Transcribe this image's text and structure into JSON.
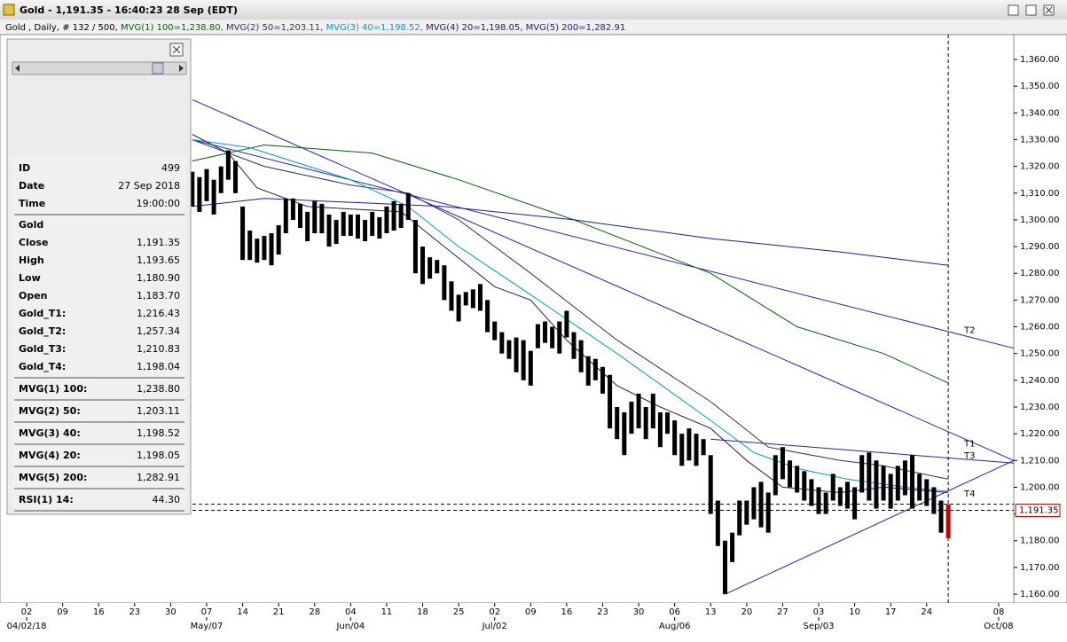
{
  "window": {
    "title": "Gold - 1,191.35 - 16:40:23  28 Sep (EDT)"
  },
  "info_panel": {
    "rows": [
      [
        "ID",
        "499"
      ],
      [
        "Date",
        "27 Sep 2018"
      ],
      [
        "Time",
        "19:00:00"
      ],
      [
        "Gold"
      ],
      [
        "Close",
        "1,191.35"
      ],
      [
        "High",
        "1,193.65"
      ],
      [
        "Low",
        "1,180.90"
      ],
      [
        "Open",
        "1,183.70"
      ],
      [
        "Gold_T1:",
        "1,216.43"
      ],
      [
        "Gold_T2:",
        "1,257.34"
      ],
      [
        "Gold_T3:",
        "1,210.83"
      ],
      [
        "Gold_T4:",
        "1,198.04"
      ],
      [
        "MVG(1) 100:",
        "1,238.80"
      ],
      [
        "MVG(2) 50:",
        "1,203.11"
      ],
      [
        "MVG(3) 40:",
        "1,198.52"
      ],
      [
        "MVG(4) 20:",
        "1,198.05"
      ],
      [
        "MVG(5) 200:",
        "1,282.91"
      ],
      [
        "RSI(1) 14:",
        "44.30"
      ]
    ]
  },
  "chart_data": {
    "type": "ohlc",
    "subtitle": "Gold , Daily, # 132 / 500, ",
    "bar_color": "#000000",
    "last_bar_color": "#cc0000",
    "bars": {
      "x": [
        23,
        24,
        25,
        26,
        27,
        28,
        29,
        30,
        31,
        32,
        33,
        34,
        35,
        36,
        37,
        38,
        39,
        40,
        41,
        42,
        43,
        44,
        45,
        46,
        47,
        48,
        49,
        50,
        51,
        52,
        53,
        54,
        55,
        56,
        57,
        58,
        59,
        60,
        61,
        62,
        63,
        64,
        65,
        66,
        67,
        68,
        69,
        70,
        71,
        72,
        73,
        74,
        75,
        76,
        77,
        78,
        79,
        80,
        81,
        82,
        83,
        84,
        85,
        86,
        87,
        88,
        89,
        90,
        91,
        92,
        93,
        94,
        95,
        96,
        97,
        98,
        99,
        100,
        101,
        102,
        103,
        104,
        105,
        106,
        107,
        108,
        109,
        110,
        111,
        112,
        113,
        114,
        115,
        116,
        117,
        118,
        119,
        120,
        121,
        122,
        123,
        124,
        125,
        126,
        127,
        128
      ],
      "low": [
        1305,
        1303,
        1307,
        1302,
        1310,
        1315,
        1310,
        1285,
        1285,
        1284,
        1285,
        1283,
        1287,
        1295,
        1300,
        1297,
        1292,
        1295,
        1295,
        1290,
        1291,
        1294,
        1294,
        1293,
        1292,
        1294,
        1293,
        1295,
        1296,
        1297,
        1300,
        1280,
        1276,
        1278,
        1280,
        1270,
        1266,
        1262,
        1268,
        1267,
        1266,
        1258,
        1255,
        1250,
        1248,
        1243,
        1240,
        1238,
        1252,
        1254,
        1252,
        1250,
        1256,
        1248,
        1243,
        1238,
        1240,
        1235,
        1222,
        1218,
        1212,
        1220,
        1222,
        1218,
        1222,
        1215,
        1220,
        1212,
        1208,
        1210,
        1208,
        1212,
        1190,
        1178,
        1160,
        1172,
        1182,
        1186,
        1188,
        1185,
        1183,
        1197,
        1203,
        1200,
        1198,
        1195,
        1193,
        1190,
        1190,
        1195,
        1193,
        1192,
        1188,
        1198,
        1195,
        1192,
        1195,
        1192,
        1195,
        1197,
        1192,
        1195,
        1193,
        1190,
        1183,
        1180.9
      ],
      "high": [
        1318,
        1316,
        1319,
        1315,
        1320,
        1326,
        1322,
        1305,
        1296,
        1293,
        1294,
        1295,
        1298,
        1308,
        1308,
        1306,
        1303,
        1307,
        1306,
        1302,
        1300,
        1303,
        1302,
        1302,
        1300,
        1303,
        1301,
        1305,
        1307,
        1306,
        1310,
        1300,
        1290,
        1286,
        1285,
        1283,
        1277,
        1272,
        1273,
        1274,
        1276,
        1270,
        1262,
        1258,
        1255,
        1256,
        1255,
        1251,
        1261,
        1262,
        1260,
        1262,
        1266,
        1258,
        1255,
        1249,
        1248,
        1245,
        1242,
        1230,
        1228,
        1232,
        1235,
        1230,
        1235,
        1228,
        1228,
        1225,
        1220,
        1222,
        1220,
        1218,
        1212,
        1195,
        1180,
        1183,
        1195,
        1195,
        1200,
        1202,
        1198,
        1212,
        1215,
        1210,
        1208,
        1206,
        1203,
        1200,
        1198,
        1205,
        1200,
        1202,
        1200,
        1212,
        1213,
        1210,
        1208,
        1205,
        1208,
        1210,
        1212,
        1205,
        1203,
        1200,
        1195,
        1193.65
      ]
    },
    "series": [
      {
        "name": "MVG(1) 100=1,238.80",
        "color": "#006400",
        "x": [
          23,
          33,
          48,
          60,
          76,
          95,
          107,
          119,
          128
        ],
        "values": [
          1322,
          1328,
          1325,
          1315,
          1300,
          1280,
          1260,
          1250,
          1239
        ]
      },
      {
        "name": "MVG(2) 50=1,203.11",
        "color": "#303060",
        "x": [
          23,
          33,
          45,
          53,
          60,
          70,
          82,
          95,
          103,
          113,
          119,
          128
        ],
        "values": [
          1330,
          1320,
          1313,
          1310,
          1300,
          1280,
          1255,
          1232,
          1215,
          1210,
          1208,
          1203
        ]
      },
      {
        "name": "MVG(3) 40=1,198.52",
        "color": "#0099cc",
        "x": [
          23,
          31,
          45,
          53,
          60,
          70,
          82,
          95,
          101,
          107,
          114,
          122,
          128
        ],
        "values": [
          1330,
          1327,
          1315,
          1305,
          1290,
          1272,
          1250,
          1225,
          1213,
          1207,
          1203,
          1200,
          1198.5
        ]
      },
      {
        "name": "MVG(4) 20=1,198.05",
        "color": "#202060",
        "x": [
          23,
          28,
          32,
          39,
          52,
          58,
          65,
          70,
          75,
          82,
          88,
          95,
          100,
          105,
          113,
          119,
          128
        ],
        "values": [
          1332,
          1325,
          1312,
          1305,
          1303,
          1290,
          1275,
          1270,
          1255,
          1238,
          1230,
          1222,
          1210,
          1200,
          1198,
          1200,
          1198
        ]
      },
      {
        "name": "MVG(5) 200=1,282.91",
        "color": "#1a1aa0",
        "x": [
          23,
          33,
          58,
          76,
          95,
          113,
          128
        ],
        "values": [
          1305,
          1308,
          1305,
          1300,
          1293,
          1288,
          1283
        ]
      }
    ],
    "trendlines": [
      {
        "name": "T1",
        "color": "#2020c0",
        "x": [
          23,
          137.1
        ],
        "values": [
          1345,
          1210
        ]
      },
      {
        "name": "T2",
        "color": "#2020c0",
        "x": [
          23,
          137.1
        ],
        "values": [
          1330,
          1252
        ]
      },
      {
        "name": "T3",
        "color": "#2020c0",
        "x": [
          95,
          137.1
        ],
        "values": [
          1218,
          1209
        ]
      },
      {
        "name": "T4",
        "color": "#2020c0",
        "x": [
          97,
          137.1
        ],
        "values": [
          1160,
          1210
        ]
      }
    ],
    "price_lines": [
      1193.65,
      1191.35
    ],
    "cursor_x": 128,
    "last_price": {
      "value": 1191.35,
      "label": "1,191.35"
    },
    "xlim": [
      -3.7,
      137.1
    ],
    "ylim": [
      1156.7,
      1369.3
    ],
    "yticks": [
      {
        "value": 1160,
        "label": "1,160.00"
      },
      {
        "value": 1170,
        "label": "1,170.00"
      },
      {
        "value": 1180,
        "label": "1,180.00"
      },
      {
        "value": 1190,
        "label": "1,190.00"
      },
      {
        "value": 1200,
        "label": "1,200.00"
      },
      {
        "value": 1210,
        "label": "1,210.00"
      },
      {
        "value": 1220,
        "label": "1,220.00"
      },
      {
        "value": 1230,
        "label": "1,230.00"
      },
      {
        "value": 1240,
        "label": "1,240.00"
      },
      {
        "value": 1250,
        "label": "1,250.00"
      },
      {
        "value": 1260,
        "label": "1,260.00"
      },
      {
        "value": 1270,
        "label": "1,270.00"
      },
      {
        "value": 1280,
        "label": "1,280.00"
      },
      {
        "value": 1290,
        "label": "1,290.00"
      },
      {
        "value": 1300,
        "label": "1,300.00"
      },
      {
        "value": 1310,
        "label": "1,310.00"
      },
      {
        "value": 1320,
        "label": "1,320.00"
      },
      {
        "value": 1330,
        "label": "1,330.00"
      },
      {
        "value": 1340,
        "label": "1,340.00"
      },
      {
        "value": 1350,
        "label": "1,350.00"
      },
      {
        "value": 1360,
        "label": "1,360.00"
      }
    ],
    "xticks": [
      {
        "value": 0,
        "label": "02"
      },
      {
        "value": 5,
        "label": "09"
      },
      {
        "value": 10,
        "label": "16"
      },
      {
        "value": 15,
        "label": "23"
      },
      {
        "value": 20,
        "label": "30"
      },
      {
        "value": 25,
        "label": "07"
      },
      {
        "value": 30,
        "label": "14"
      },
      {
        "value": 35,
        "label": "21"
      },
      {
        "value": 40,
        "label": "28"
      },
      {
        "value": 45,
        "label": "04"
      },
      {
        "value": 50,
        "label": "11"
      },
      {
        "value": 55,
        "label": "18"
      },
      {
        "value": 60,
        "label": "25"
      },
      {
        "value": 65,
        "label": "02"
      },
      {
        "value": 70,
        "label": "09"
      },
      {
        "value": 75,
        "label": "16"
      },
      {
        "value": 80,
        "label": "23"
      },
      {
        "value": 85,
        "label": "30"
      },
      {
        "value": 90,
        "label": "06"
      },
      {
        "value": 95,
        "label": "13"
      },
      {
        "value": 100,
        "label": "20"
      },
      {
        "value": 105,
        "label": "27"
      },
      {
        "value": 110,
        "label": "03"
      },
      {
        "value": 115,
        "label": "10"
      },
      {
        "value": 120,
        "label": "17"
      },
      {
        "value": 125,
        "label": "24"
      },
      {
        "value": 135,
        "label": "08"
      }
    ],
    "month_ticks": [
      {
        "value": 0,
        "label": "04/02/18"
      },
      {
        "value": 25,
        "label": "May/07"
      },
      {
        "value": 45,
        "label": "Jun/04"
      },
      {
        "value": 65,
        "label": "Jul/02"
      },
      {
        "value": 90,
        "label": "Aug/06"
      },
      {
        "value": 110,
        "label": "Sep/03"
      },
      {
        "value": 135,
        "label": "Oct/08"
      }
    ]
  }
}
